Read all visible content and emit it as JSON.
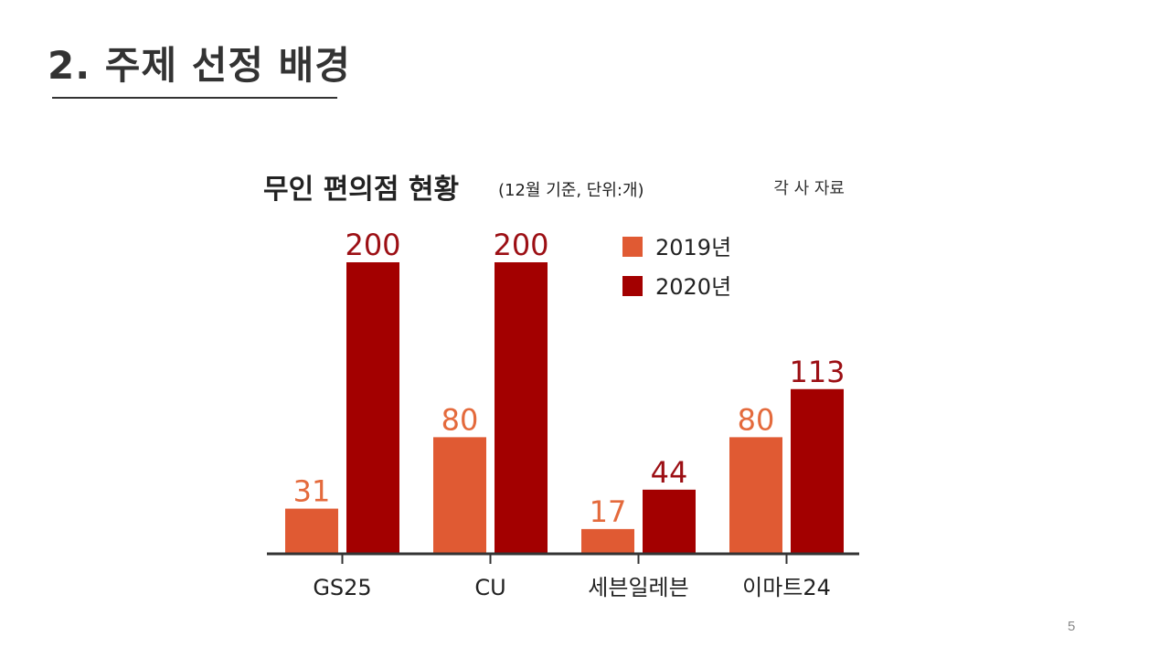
{
  "slide": {
    "title": "2. 주제 선정 배경",
    "page_number": "5"
  },
  "colors": {
    "series_2019": "#E05A33",
    "series_2020": "#A30000",
    "label_2019": "#E46A3C",
    "label_2020": "#9C0F14",
    "text": "#222222",
    "axis": "#333333"
  },
  "chart_data": {
    "type": "bar",
    "title": "무인 편의점 현황",
    "subtitle": "(12월 기준, 단위:개)",
    "source": "각 사 자료",
    "categories": [
      "GS25",
      "CU",
      "세븐일레븐",
      "이마트24"
    ],
    "series": [
      {
        "name": "2019년",
        "values": [
          31,
          80,
          17,
          80
        ]
      },
      {
        "name": "2020년",
        "values": [
          200,
          200,
          44,
          113
        ]
      }
    ],
    "ylim": [
      0,
      200
    ],
    "grid": false,
    "legend_position": "top-right"
  }
}
